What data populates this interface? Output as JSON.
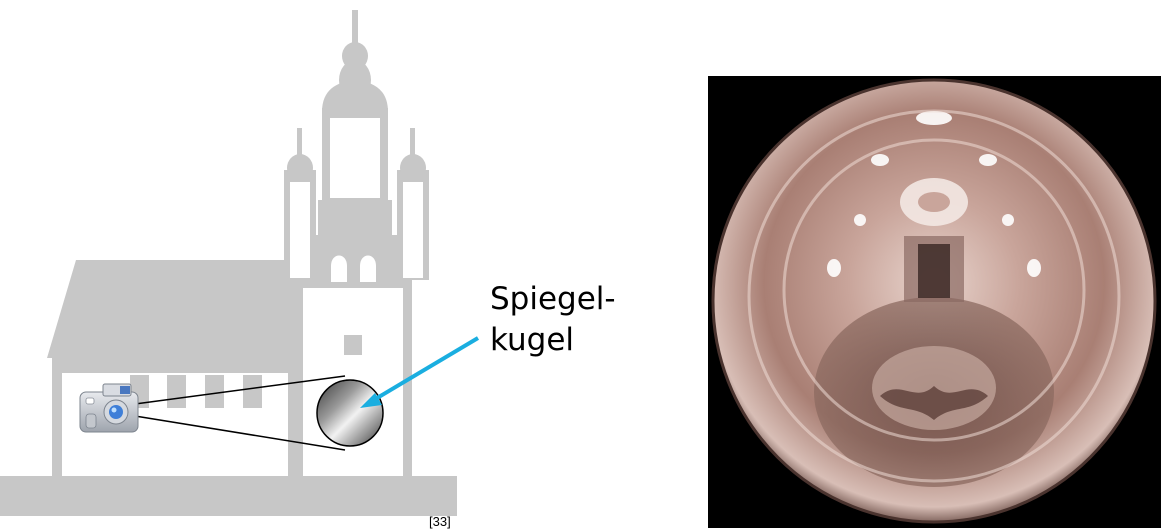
{
  "labels": {
    "mirror_ball_line1": "Spiegel-",
    "mirror_ball_line2": "kugel",
    "citation": "[33]"
  },
  "colors": {
    "building": "#c7c7c7",
    "window": "#ffffff",
    "arrow": "#1aaee0",
    "photo_background": "#000000"
  },
  "icons": [
    "church-silhouette",
    "camera-icon",
    "mirror-ball",
    "light-probe-photo"
  ]
}
